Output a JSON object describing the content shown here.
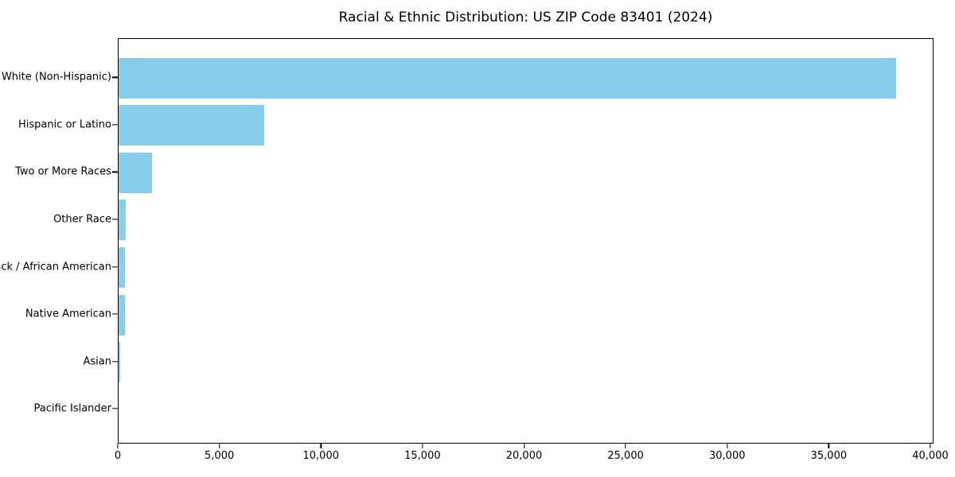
{
  "chart_data": {
    "type": "bar",
    "orientation": "horizontal",
    "title": "Racial & Ethnic Distribution: US ZIP Code 83401 (2024)",
    "categories": [
      "White (Non-Hispanic)",
      "Hispanic or Latino",
      "Two or More Races",
      "Other Race",
      "Black / African American",
      "Native American",
      "Asian",
      "Pacific Islander"
    ],
    "values": [
      38280,
      7170,
      1660,
      340,
      320,
      310,
      90,
      0
    ],
    "xlabel": "",
    "ylabel": "",
    "xlim": [
      0,
      40000
    ],
    "xticks": [
      0,
      5000,
      10000,
      15000,
      20000,
      25000,
      30000,
      35000,
      40000
    ],
    "xtick_labels": [
      "0",
      "5,000",
      "10,000",
      "15,000",
      "20,000",
      "25,000",
      "30,000",
      "35,000",
      "40,000"
    ],
    "bar_color": "#87CEEB",
    "grid": false,
    "legend_position": "none",
    "sort_order": "descending"
  }
}
